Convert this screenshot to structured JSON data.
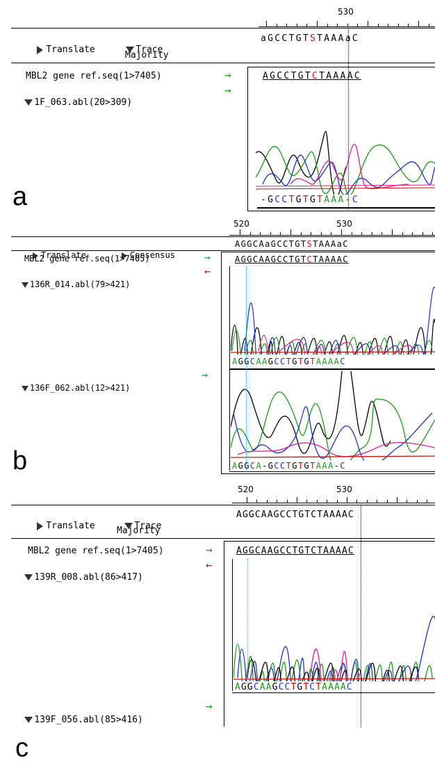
{
  "panels": [
    {
      "label": "a",
      "ruler": [
        "530"
      ],
      "toolbar": {
        "translate": "Translate",
        "mode": "Trace",
        "mode_sub": "Majority"
      },
      "consensus": "aGCCTGTSTAAAaC",
      "rows": [
        {
          "name": "MBL2 gene ref.seq(1>7405)",
          "dir": "green",
          "seq": "AGCCTGTCTAAAAC"
        },
        {
          "name": "1F_063.abl(20>309)",
          "dir": "green",
          "basecalls": "-GCCTGTGTAAA-C"
        }
      ]
    },
    {
      "label": "b",
      "ruler": [
        "520",
        "530"
      ],
      "toolbar": {
        "translate": "Translate",
        "mode": "Consensus"
      },
      "consensus": "AGGCAaGCCTGTSTAAAaC",
      "rows": [
        {
          "name": "MBL2 gene ref.seq(1>7405)",
          "dir": "green",
          "seq": "AGGCAAGCCTGTCTAAAAC"
        },
        {
          "name": "136R_014.abl(79>421)",
          "dir": "red",
          "basecalls": "AGGCAAGCCTGTGTAAAAC"
        },
        {
          "name": "136F_062.abl(12>421)",
          "dir": "green",
          "basecalls": "AGGCA-GCCTGTGTAAA-C"
        }
      ]
    },
    {
      "label": "c",
      "ruler": [
        "520",
        "530"
      ],
      "toolbar": {
        "translate": "Translate",
        "mode": "Trace",
        "mode_sub": "Majority"
      },
      "consensus": "AGGCAAGCCTGTCTAAAAC",
      "rows": [
        {
          "name": "MBL2 gene ref.seq(1>7405)",
          "dir": "green",
          "seq": "AGGCAAGCCTGTCTAAAAC"
        },
        {
          "name": "139R_008.abl(86>417)",
          "dir": "red",
          "basecalls": "AGGCAAGCCTGTCTAAAAC"
        },
        {
          "name": "139F_056.abl(85>416)",
          "dir": "green"
        }
      ]
    }
  ],
  "glyphs": {
    "arrow_right": "→",
    "arrow_left": "←"
  },
  "colors": {
    "A": "#1a9a1a",
    "C": "#2030d0",
    "G": "#000000",
    "T": "#d01010",
    "S": "#d01010"
  }
}
